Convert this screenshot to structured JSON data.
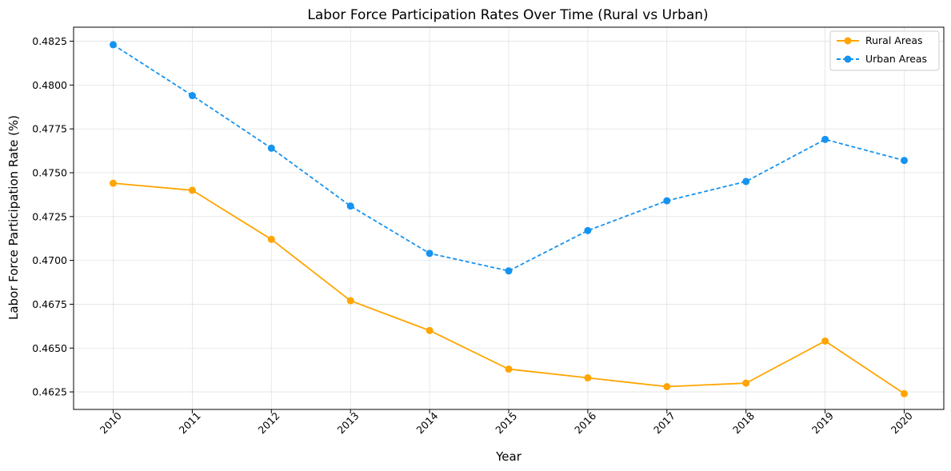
{
  "chart_data": {
    "type": "line",
    "title": "Labor Force Participation Rates Over Time (Rural vs Urban)",
    "xlabel": "Year",
    "ylabel": "Labor Force Participation Rate (%)",
    "x": [
      "2010",
      "2011",
      "2012",
      "2013",
      "2014",
      "2015",
      "2016",
      "2017",
      "2018",
      "2019",
      "2020"
    ],
    "y_ticks": [
      "0.4625",
      "0.4650",
      "0.4675",
      "0.4700",
      "0.4725",
      "0.4750",
      "0.4775",
      "0.4800",
      "0.4825"
    ],
    "ylim": [
      0.4615,
      0.4833
    ],
    "grid": true,
    "legend_position": "top-right",
    "series": [
      {
        "name": "Rural Areas",
        "color": "#ffa500",
        "line_style": "solid",
        "marker": "circle",
        "values": [
          0.4744,
          0.474,
          0.4712,
          0.4677,
          0.466,
          0.4638,
          0.4633,
          0.4628,
          0.463,
          0.4654,
          0.4624
        ]
      },
      {
        "name": "Urban Areas",
        "color": "#1593f0",
        "line_style": "dashed",
        "marker": "circle",
        "values": [
          0.4823,
          0.4794,
          0.4764,
          0.4731,
          0.4704,
          0.4694,
          0.4717,
          0.4734,
          0.4745,
          0.4769,
          0.4757
        ]
      }
    ]
  }
}
